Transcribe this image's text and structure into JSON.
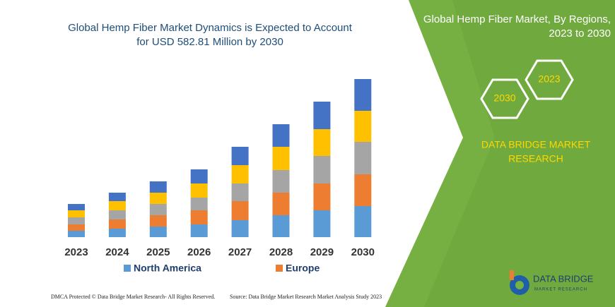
{
  "chart_data": {
    "type": "bar",
    "stacked": true,
    "title": [
      "Global Hemp Fiber Market Dynamics is Expected to Account",
      "for USD 582.81 Million by 2030"
    ],
    "categories": [
      "2023",
      "2024",
      "2025",
      "2026",
      "2027",
      "2028",
      "2029",
      "2030"
    ],
    "series": [
      {
        "name": "North America",
        "color": "#5b9bd5",
        "values": [
          9,
          12,
          15,
          18,
          24,
          31,
          38,
          44
        ]
      },
      {
        "name": "Europe",
        "color": "#ed7d31",
        "values": [
          9,
          13,
          16,
          20,
          27,
          32,
          38,
          45
        ]
      },
      {
        "color": "#a5a5a5",
        "values": [
          10,
          13,
          16,
          18,
          25,
          32,
          39,
          46
        ]
      },
      {
        "color": "#ffc000",
        "values": [
          10,
          13,
          16,
          20,
          26,
          33,
          38,
          44
        ]
      },
      {
        "color": "#4472c4",
        "values": [
          9,
          12,
          16,
          20,
          26,
          32,
          39,
          45
        ]
      }
    ]
  },
  "panel": {
    "heading": [
      "Global Hemp Fiber Market, By Regions,",
      "2023 to 2030"
    ],
    "hexagons": [
      "2023",
      "2030"
    ],
    "brand": [
      "DATA BRIDGE MARKET",
      "RESEARCH"
    ]
  },
  "footer": {
    "left": "DMCA Protected © Data Bridge Market Research- All Rights Reserved.",
    "right": "Source: Data Bridge Market Research Market Analysis Study 2023"
  },
  "logo": {
    "name": "DATA BRIDGE",
    "tagline": "MARKET RESEARCH"
  }
}
